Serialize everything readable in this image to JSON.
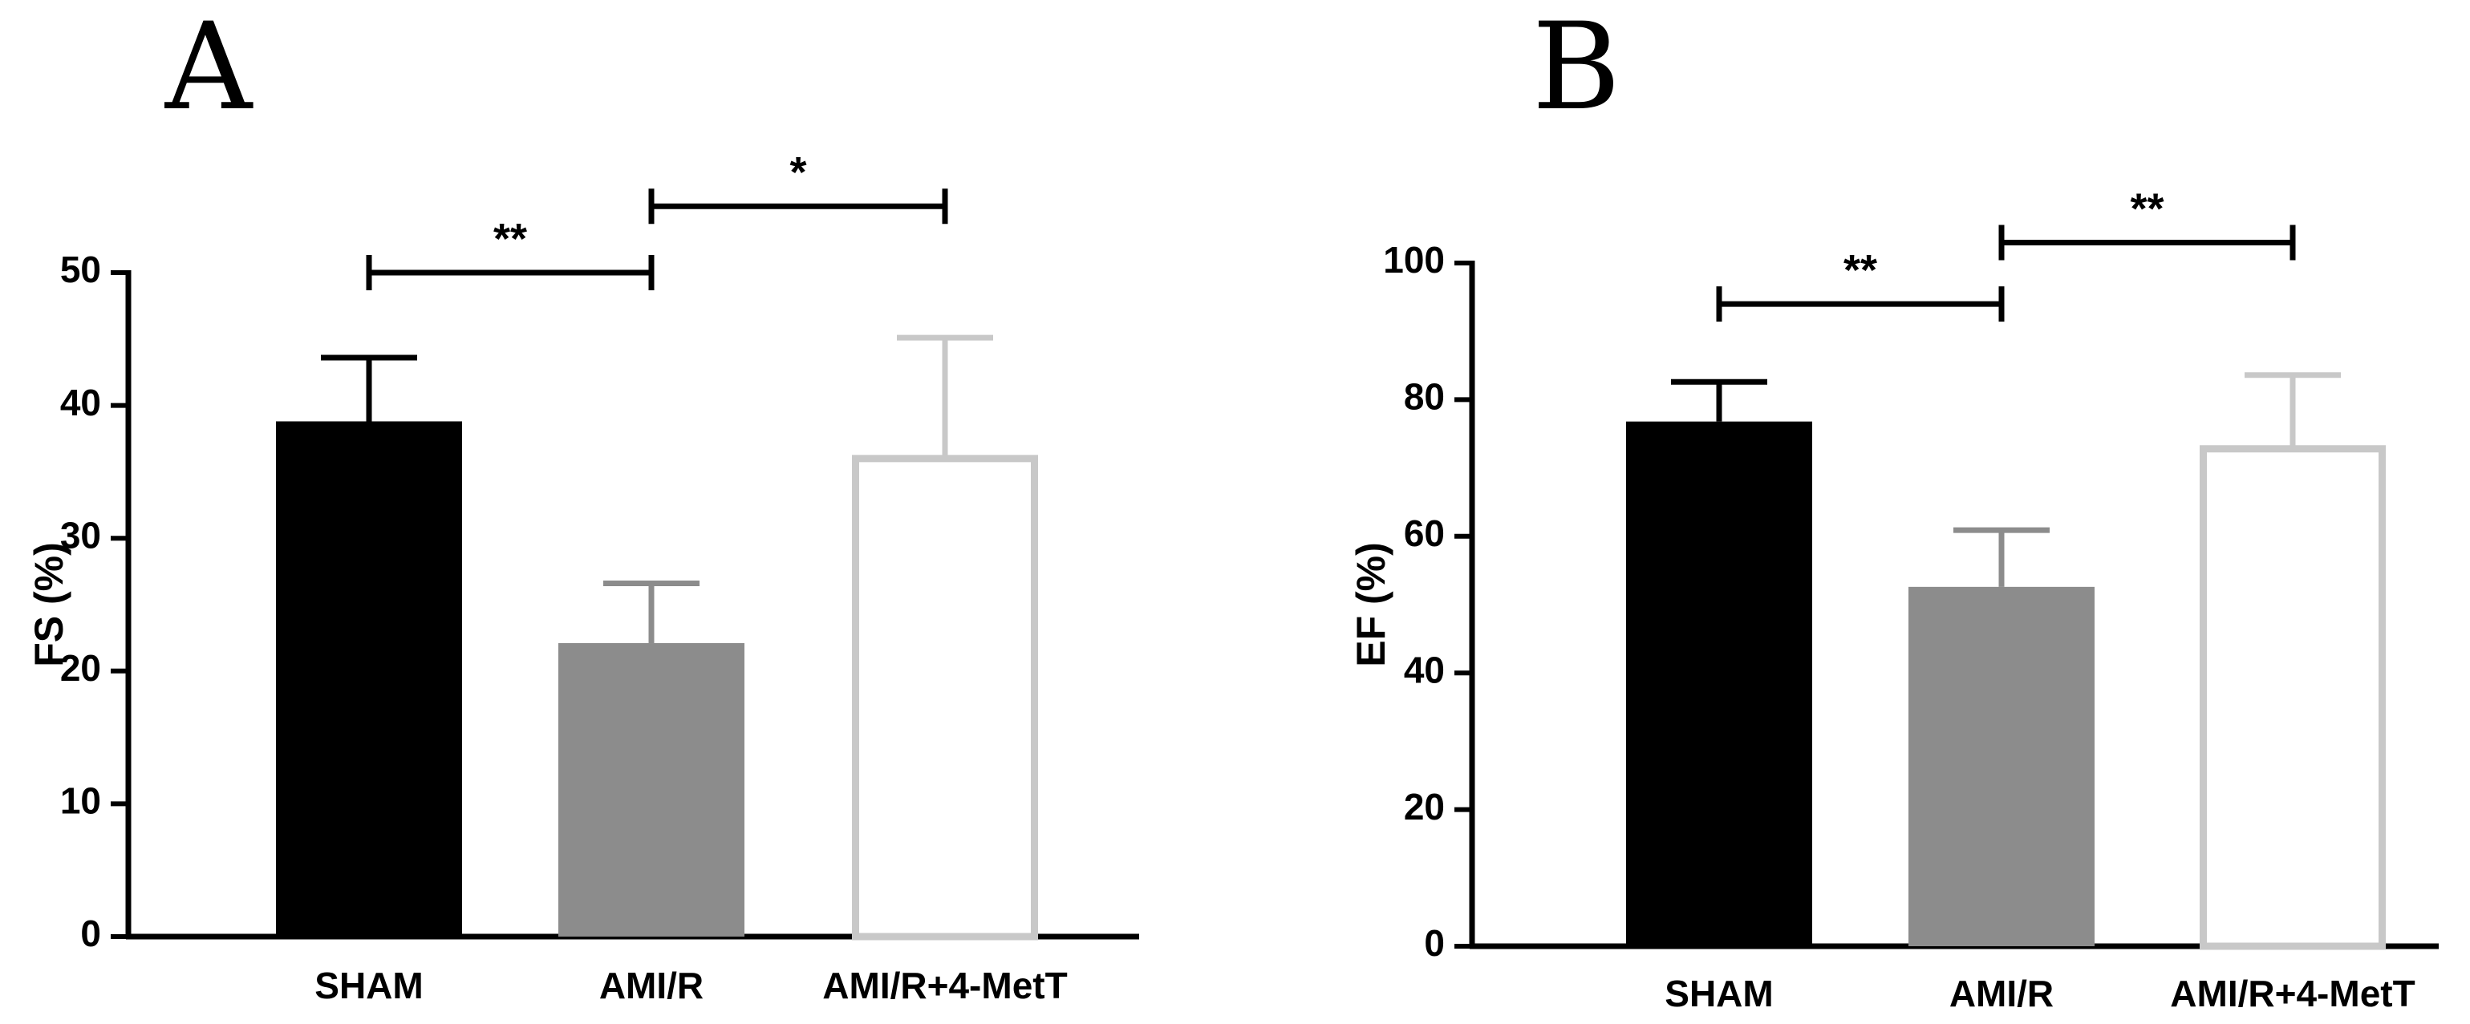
{
  "figure": {
    "panels": [
      "A",
      "B"
    ]
  },
  "chart_data": [
    {
      "type": "bar",
      "panel": "A",
      "title": "",
      "xlabel": "",
      "ylabel": "FS (%)",
      "ylim": [
        0,
        50
      ],
      "yticks": [
        0,
        10,
        20,
        30,
        40,
        50
      ],
      "categories": [
        "SHAM",
        "AMI/R",
        "AMI/R+4-MetT"
      ],
      "values": [
        38.8,
        22.1,
        36.0
      ],
      "errors": [
        4.8,
        4.5,
        9.1
      ],
      "bar_styles": [
        "filled-black",
        "filled-gray",
        "outline-lightgray"
      ],
      "colors": [
        "#000000",
        "#8c8c8c",
        "#c8c8c8"
      ],
      "significance": [
        {
          "from": "SHAM",
          "to": "AMI/R",
          "label": "**",
          "y": 50
        },
        {
          "from": "AMI/R",
          "to": "AMI/R+4-MetT",
          "label": "*",
          "y": 55
        }
      ]
    },
    {
      "type": "bar",
      "panel": "B",
      "title": "",
      "xlabel": "",
      "ylabel": "EF (%)",
      "ylim": [
        0,
        100
      ],
      "yticks": [
        0,
        20,
        40,
        60,
        80,
        100
      ],
      "categories": [
        "SHAM",
        "AMI/R",
        "AMI/R+4-MetT"
      ],
      "values": [
        76.8,
        52.6,
        72.8
      ],
      "errors": [
        5.8,
        8.3,
        10.8
      ],
      "bar_styles": [
        "filled-black",
        "filled-gray",
        "outline-lightgray"
      ],
      "colors": [
        "#000000",
        "#8c8c8c",
        "#c8c8c8"
      ],
      "significance": [
        {
          "from": "SHAM",
          "to": "AMI/R",
          "label": "**",
          "y": 94
        },
        {
          "from": "AMI/R",
          "to": "AMI/R+4-MetT",
          "label": "**",
          "y": 103
        }
      ]
    }
  ]
}
